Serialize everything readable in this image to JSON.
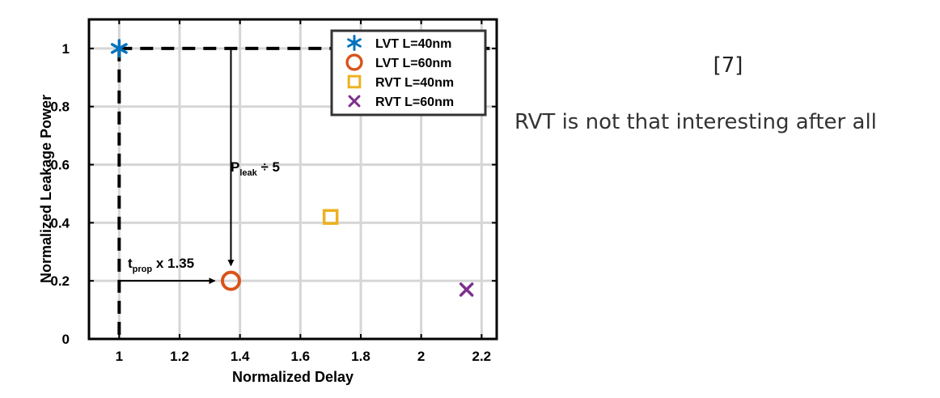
{
  "chart_data": {
    "type": "scatter",
    "title": "",
    "xlabel": "Normalized Delay",
    "ylabel": "Normalized Leakage Power",
    "xlim": [
      0.9,
      2.25
    ],
    "ylim": [
      0,
      1.1
    ],
    "xticks": [
      1,
      1.2,
      1.4,
      1.6,
      1.8,
      2,
      2.2
    ],
    "yticks": [
      0,
      0.2,
      0.4,
      0.6,
      0.8,
      1
    ],
    "xtick_labels": [
      "1",
      "1.2",
      "1.4",
      "1.6",
      "1.8",
      "2",
      "2.2"
    ],
    "ytick_labels": [
      "0",
      "0.2",
      "0.4",
      "0.6",
      "0.8",
      "1"
    ],
    "grid": true,
    "legend_position": "top-right",
    "series": [
      {
        "name": "LVT L=40nm",
        "marker": "asterisk",
        "color": "#0072BD",
        "x": 1.0,
        "y": 1.0
      },
      {
        "name": "LVT L=60nm",
        "marker": "circle",
        "color": "#D95319",
        "x": 1.37,
        "y": 0.2
      },
      {
        "name": "RVT L=40nm",
        "marker": "square",
        "color": "#EDB120",
        "x": 1.7,
        "y": 0.42
      },
      {
        "name": "RVT L=60nm",
        "marker": "x",
        "color": "#7E2F8E",
        "x": 2.15,
        "y": 0.17
      }
    ],
    "annotations": {
      "tprop": {
        "main": "t",
        "sub": "prop",
        "rest": " x 1.35"
      },
      "pleak": {
        "main": "P",
        "sub": "leak",
        "rest": " ÷ 5"
      }
    }
  },
  "side_text": {
    "reference": "[7]",
    "comment": "RVT is not that interesting after all"
  }
}
